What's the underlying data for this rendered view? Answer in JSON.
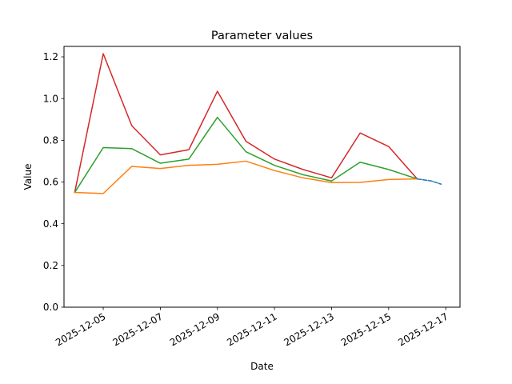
{
  "chart_data": {
    "type": "line",
    "title": "Parameter values",
    "xlabel": "Date",
    "ylabel": "Value",
    "x_axis_type": "date",
    "xlim": [
      "2025-12-03T15:00:00",
      "2025-12-17T12:00:00"
    ],
    "ylim": [
      0,
      1.25
    ],
    "x_ticks": [
      "2025-12-05",
      "2025-12-07",
      "2025-12-09",
      "2025-12-11",
      "2025-12-13",
      "2025-12-15",
      "2025-12-17"
    ],
    "y_ticks": [
      "0.0",
      "0.2",
      "0.4",
      "0.6",
      "0.8",
      "1.0",
      "1.2"
    ],
    "grid": false,
    "legend": "none",
    "series": [
      {
        "color": "#d62728",
        "points": [
          [
            "2025-12-04",
            0.55
          ],
          [
            "2025-12-05",
            1.215
          ],
          [
            "2025-12-06",
            0.87
          ],
          [
            "2025-12-07",
            0.73
          ],
          [
            "2025-12-08",
            0.755
          ],
          [
            "2025-12-09",
            1.035
          ],
          [
            "2025-12-10",
            0.795
          ],
          [
            "2025-12-11",
            0.71
          ],
          [
            "2025-12-12",
            0.66
          ],
          [
            "2025-12-13",
            0.62
          ],
          [
            "2025-12-14",
            0.835
          ],
          [
            "2025-12-15",
            0.77
          ],
          [
            "2025-12-16",
            0.615
          ]
        ]
      },
      {
        "color": "#2ca02c",
        "points": [
          [
            "2025-12-04",
            0.55
          ],
          [
            "2025-12-05",
            0.765
          ],
          [
            "2025-12-06",
            0.76
          ],
          [
            "2025-12-07",
            0.69
          ],
          [
            "2025-12-08",
            0.71
          ],
          [
            "2025-12-09",
            0.91
          ],
          [
            "2025-12-10",
            0.745
          ],
          [
            "2025-12-11",
            0.68
          ],
          [
            "2025-12-12",
            0.635
          ],
          [
            "2025-12-13",
            0.605
          ],
          [
            "2025-12-14",
            0.695
          ],
          [
            "2025-12-15",
            0.66
          ],
          [
            "2025-12-16",
            0.615
          ]
        ]
      },
      {
        "color": "#ff7f0e",
        "points": [
          [
            "2025-12-04",
            0.55
          ],
          [
            "2025-12-05",
            0.545
          ],
          [
            "2025-12-06",
            0.675
          ],
          [
            "2025-12-07",
            0.665
          ],
          [
            "2025-12-08",
            0.68
          ],
          [
            "2025-12-09",
            0.685
          ],
          [
            "2025-12-10",
            0.7
          ],
          [
            "2025-12-11",
            0.655
          ],
          [
            "2025-12-12",
            0.62
          ],
          [
            "2025-12-13",
            0.597
          ],
          [
            "2025-12-14",
            0.598
          ],
          [
            "2025-12-15",
            0.612
          ],
          [
            "2025-12-16",
            0.615
          ]
        ]
      },
      {
        "color": "#1f77b4",
        "style": "dashed",
        "points": [
          [
            "2025-12-16",
            0.615
          ],
          [
            "2025-12-16T12:00:00",
            0.605
          ],
          [
            "2025-12-16T20:00:00",
            0.59
          ]
        ]
      }
    ]
  }
}
